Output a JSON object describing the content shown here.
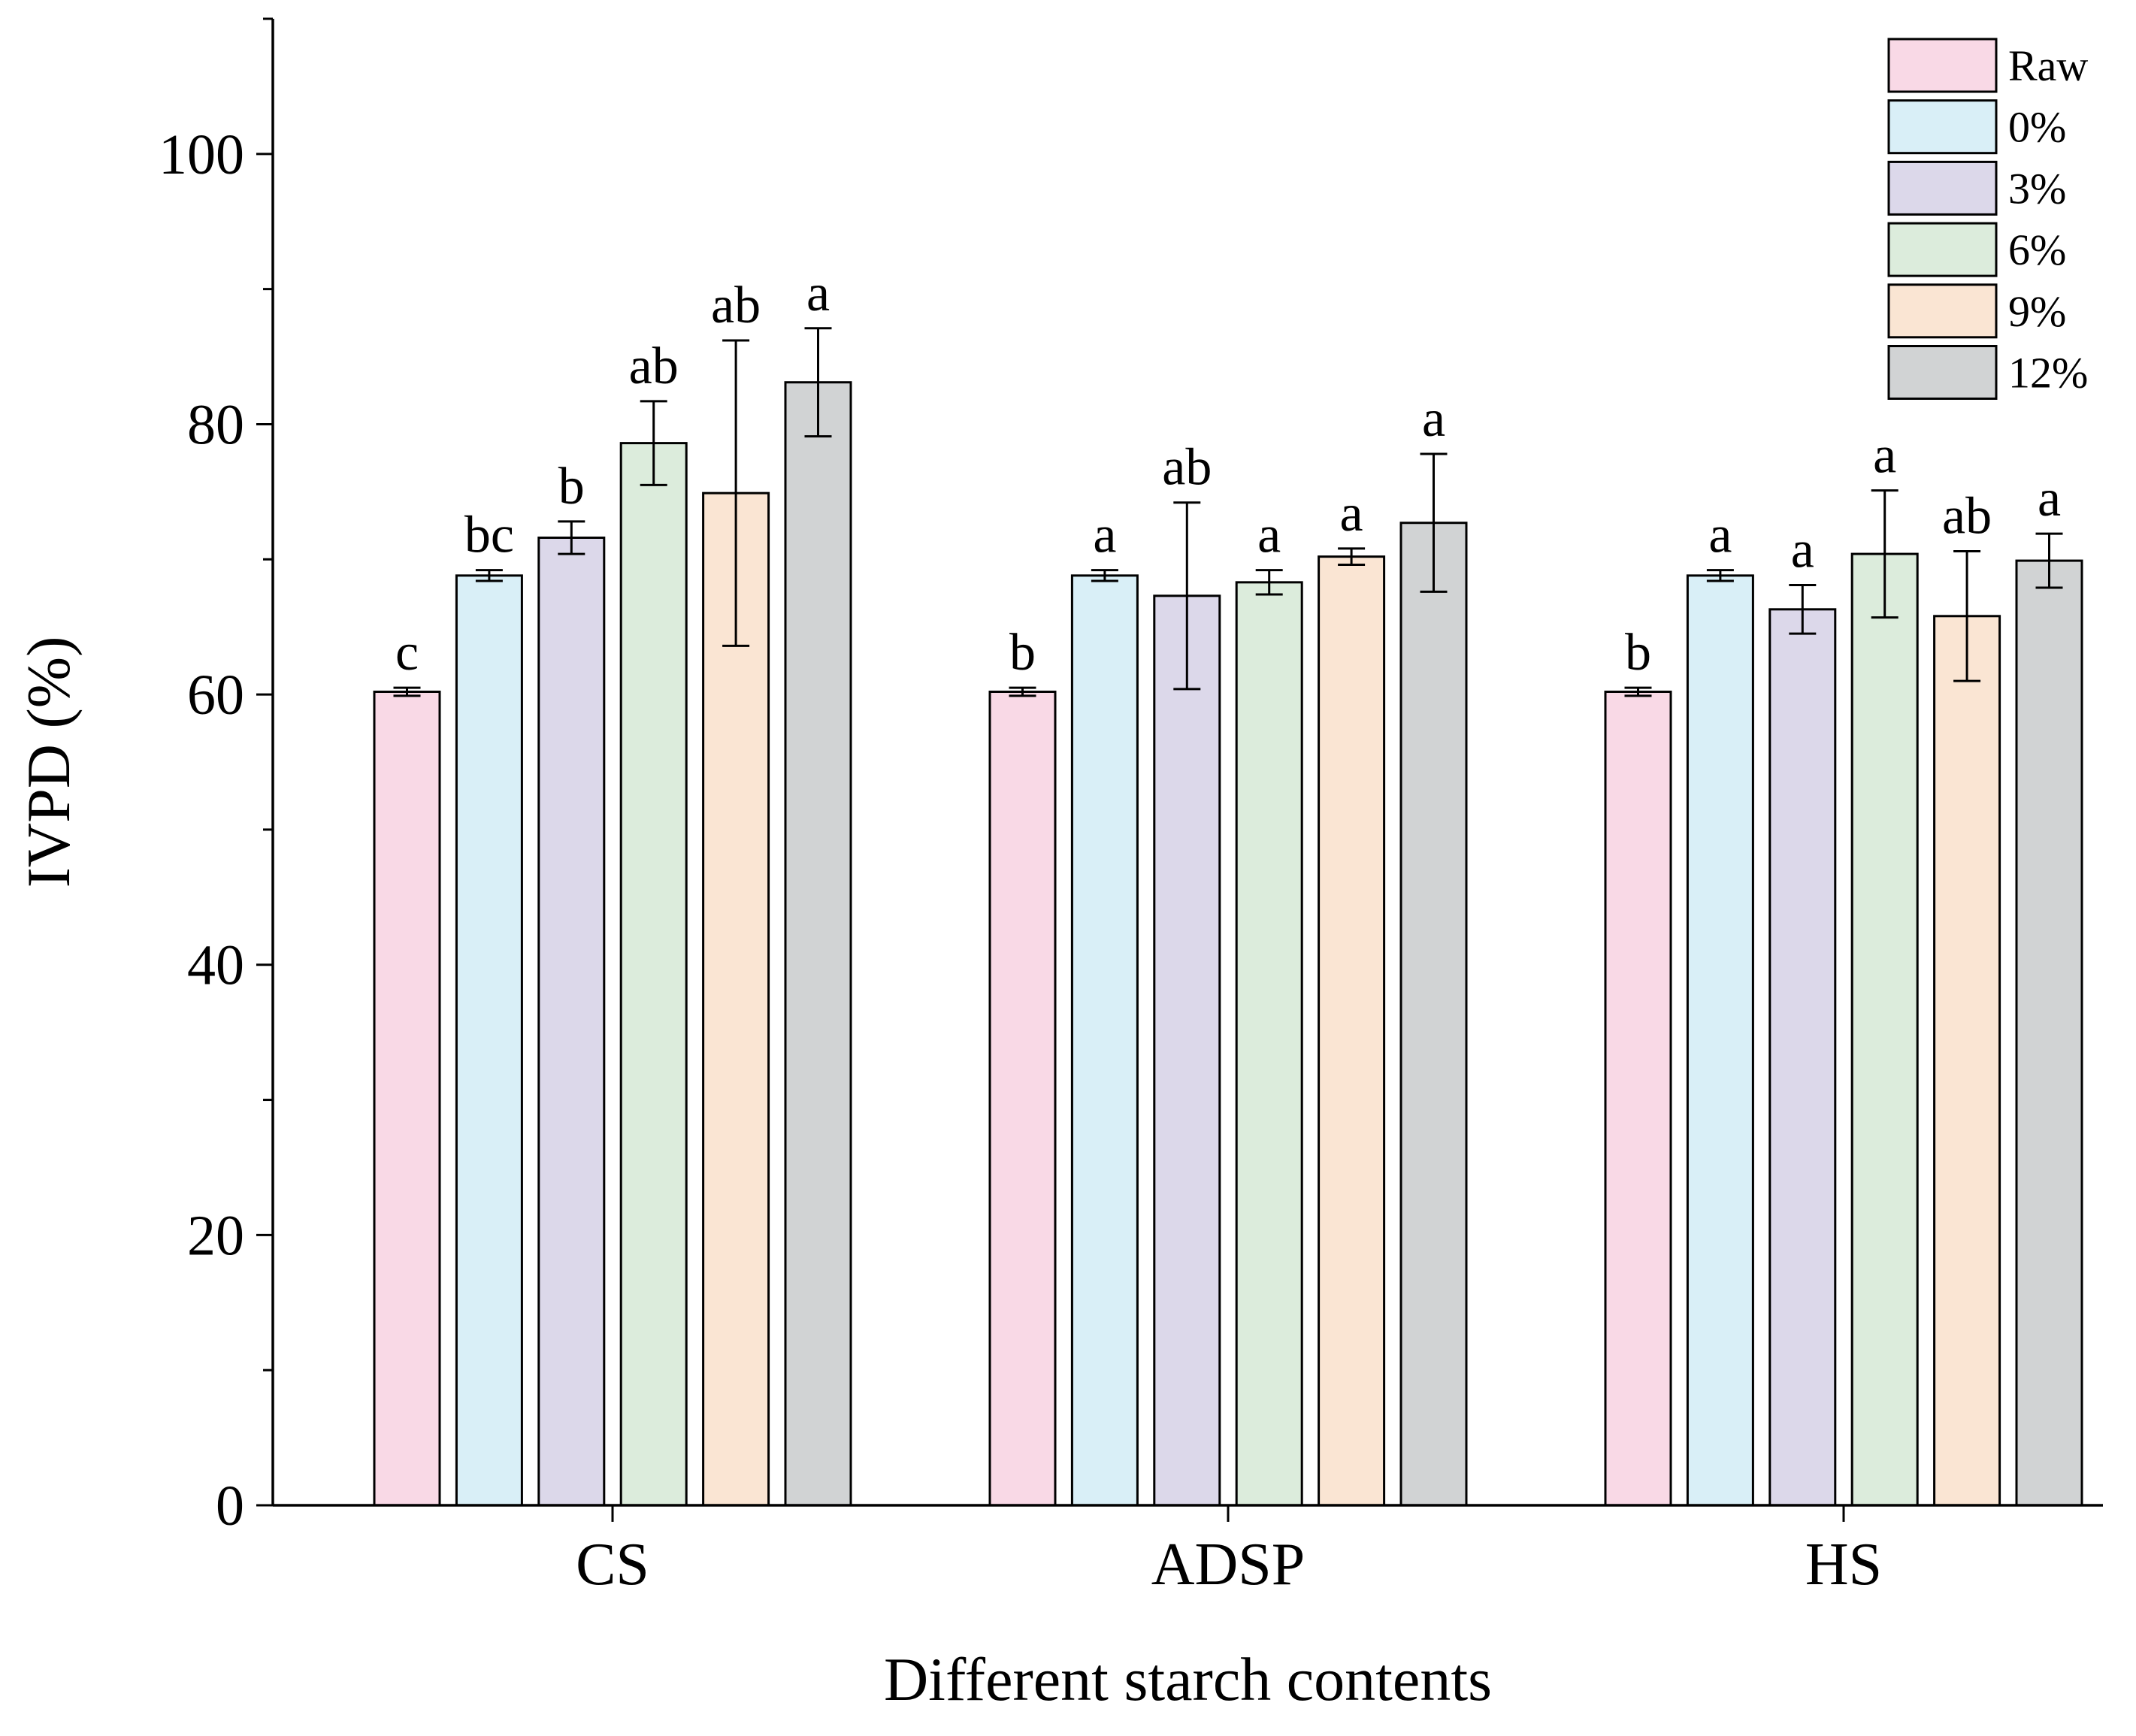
{
  "chart_data": {
    "type": "bar",
    "title": "",
    "xlabel": "Different starch contents",
    "ylabel": "IVPD (%)",
    "ylim": [
      0,
      110
    ],
    "yticks": [
      0,
      20,
      40,
      60,
      80,
      100
    ],
    "grid": false,
    "legend_position": "top-right",
    "categories": [
      "CS",
      "ADSP",
      "HS"
    ],
    "series": [
      {
        "name": "Raw",
        "color": "#f9d9e6",
        "values": [
          60.2,
          60.2,
          60.2
        ],
        "errors": [
          0.3,
          0.3,
          0.3
        ],
        "letters": [
          "c",
          "b",
          "b"
        ]
      },
      {
        "name": "0%",
        "color": "#d9eff7",
        "values": [
          68.8,
          68.8,
          68.8
        ],
        "errors": [
          0.4,
          0.4,
          0.4
        ],
        "letters": [
          "bc",
          "a",
          "a"
        ]
      },
      {
        "name": "3%",
        "color": "#dcd8ea",
        "values": [
          71.6,
          67.3,
          66.3
        ],
        "errors": [
          1.2,
          6.9,
          1.8
        ],
        "letters": [
          "b",
          "ab",
          "a"
        ]
      },
      {
        "name": "6%",
        "color": "#dcecdc",
        "values": [
          78.6,
          68.3,
          70.4
        ],
        "errors": [
          3.1,
          0.9,
          4.7
        ],
        "letters": [
          "ab",
          "a",
          "a"
        ]
      },
      {
        "name": "9%",
        "color": "#fae5d3",
        "values": [
          74.9,
          70.2,
          65.8
        ],
        "errors": [
          11.3,
          0.6,
          4.8
        ],
        "letters": [
          "ab",
          "a",
          "ab"
        ]
      },
      {
        "name": "12%",
        "color": "#d1d3d4",
        "values": [
          83.1,
          72.7,
          69.9
        ],
        "errors": [
          4.0,
          5.1,
          2.0
        ],
        "letters": [
          "a",
          "a",
          "a"
        ]
      }
    ]
  }
}
